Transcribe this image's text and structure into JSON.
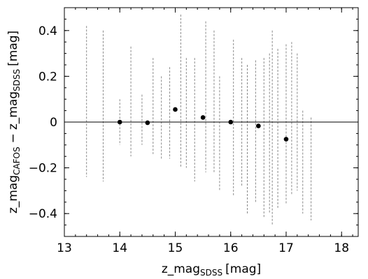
{
  "chart_data": {
    "type": "scatter",
    "xlabel": {
      "main": "z_mag",
      "sub": "SDSS",
      "unit": "[mag]"
    },
    "ylabel": {
      "main": "z_mag",
      "sub1": "CAFOS",
      "op": "−",
      "main2": "z_mag",
      "sub2": "SDSS",
      "unit": "[mag]"
    },
    "xlim": [
      13,
      18.3
    ],
    "ylim": [
      -0.5,
      0.5
    ],
    "xticks": [
      13,
      14,
      15,
      16,
      17,
      18
    ],
    "xtick_labels": [
      "13",
      "14",
      "15",
      "16",
      "17",
      "18"
    ],
    "yticks": [
      -0.4,
      -0.2,
      0,
      0.2,
      0.4
    ],
    "ytick_labels": [
      "−0.4",
      "−0.2",
      "0",
      "0.2",
      "0.4"
    ],
    "reference_line_y": 0,
    "grid": false,
    "series": [
      {
        "marker": "filled-circle",
        "x": [
          14.0,
          14.5,
          15.0,
          15.5,
          16.0,
          16.5,
          17.0
        ],
        "y": [
          0.0,
          -0.003,
          0.055,
          0.02,
          0.0,
          -0.017,
          -0.075
        ]
      }
    ],
    "scatter_columns": {
      "marker": "vertical-dash",
      "x": [
        13.4,
        13.7,
        14.0,
        14.2,
        14.4,
        14.6,
        14.75,
        14.9,
        15.1,
        15.2,
        15.35,
        15.55,
        15.7,
        15.8,
        16.05,
        16.2,
        16.3,
        16.45,
        16.6,
        16.7,
        16.75,
        16.85,
        17.0,
        17.1,
        17.2,
        17.3,
        17.45
      ],
      "y_min": [
        -0.24,
        -0.26,
        -0.1,
        -0.15,
        -0.1,
        -0.14,
        -0.16,
        -0.16,
        -0.2,
        -0.2,
        -0.26,
        -0.22,
        -0.22,
        -0.3,
        -0.32,
        -0.28,
        -0.4,
        -0.35,
        -0.42,
        -0.4,
        -0.45,
        -0.38,
        -0.36,
        -0.32,
        -0.3,
        -0.4,
        -0.43
      ],
      "y_max": [
        0.42,
        0.4,
        0.1,
        0.33,
        0.12,
        0.28,
        0.2,
        0.24,
        0.47,
        0.28,
        0.28,
        0.44,
        0.4,
        0.2,
        0.36,
        0.28,
        0.25,
        0.27,
        0.28,
        0.3,
        0.4,
        0.32,
        0.34,
        0.35,
        0.3,
        0.05,
        0.02
      ]
    }
  }
}
